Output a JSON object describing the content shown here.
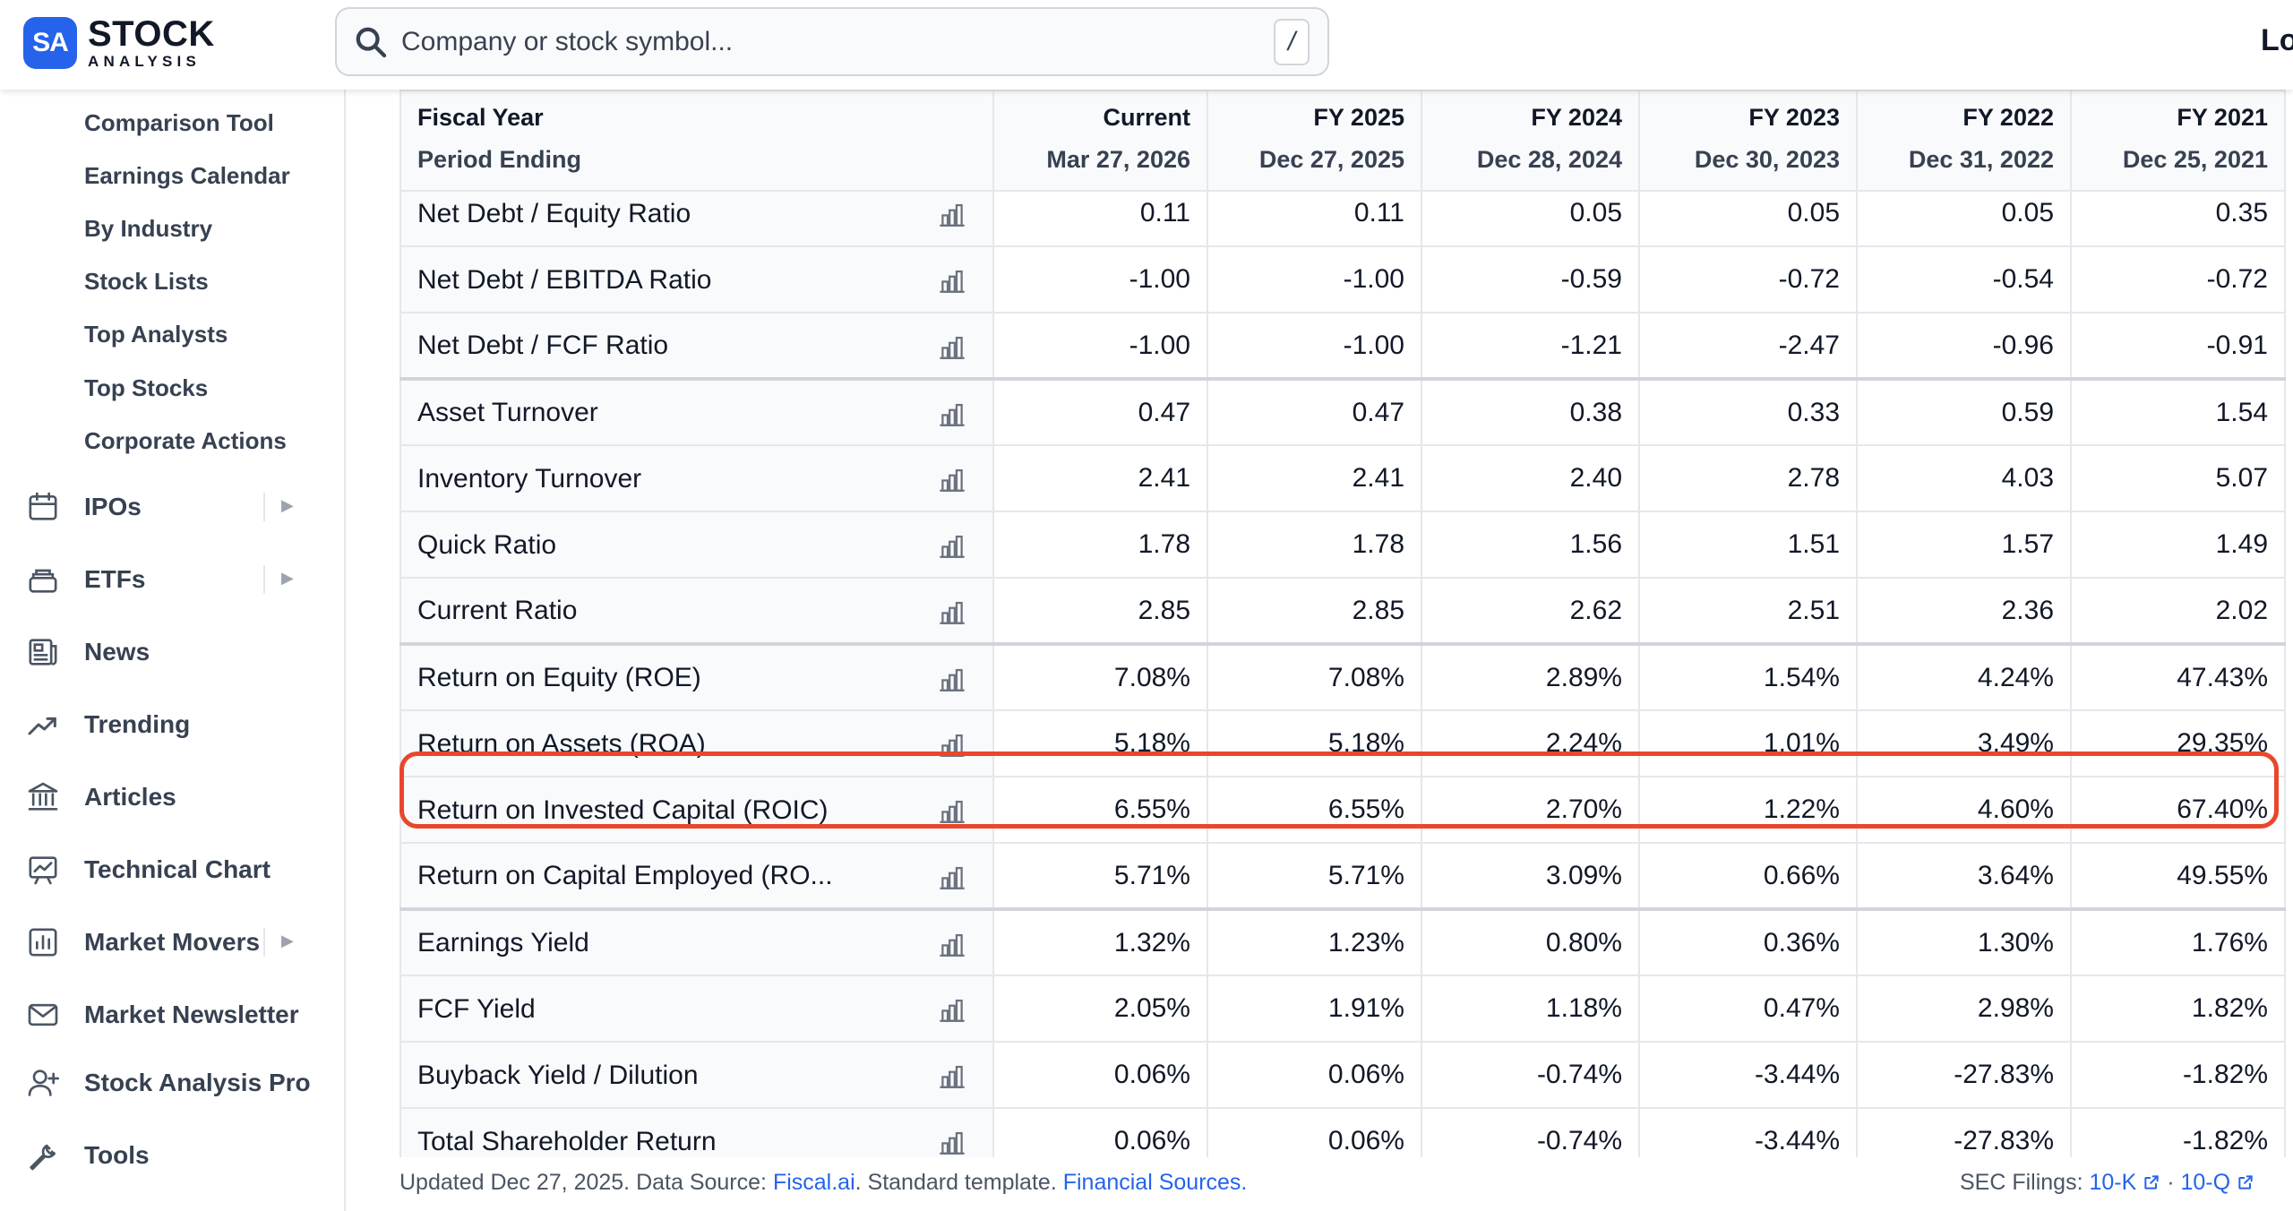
{
  "header": {
    "logo_badge": "SA",
    "logo_line1": "STOCK",
    "logo_line2": "ANALYSIS",
    "search_placeholder": "Company or stock symbol...",
    "search_shortcut": "/",
    "login_label": "Lo"
  },
  "sidebar": {
    "sub_items": [
      "Comparison Tool",
      "Earnings Calendar",
      "By Industry",
      "Stock Lists",
      "Top Analysts",
      "Top Stocks",
      "Corporate Actions"
    ],
    "items": [
      {
        "label": "IPOs",
        "icon": "calendar-icon",
        "expandable": true
      },
      {
        "label": "ETFs",
        "icon": "stack-icon",
        "expandable": true
      },
      {
        "label": "News",
        "icon": "newspaper-icon",
        "expandable": false
      },
      {
        "label": "Trending",
        "icon": "trending-up-icon",
        "expandable": false
      },
      {
        "label": "Articles",
        "icon": "bank-icon",
        "expandable": false
      },
      {
        "label": "Technical Chart",
        "icon": "chart-board-icon",
        "expandable": false
      },
      {
        "label": "Market Movers",
        "icon": "bar-chart-icon",
        "expandable": true
      },
      {
        "label": "Market Newsletter",
        "icon": "mail-icon",
        "expandable": false
      },
      {
        "label": "Stock Analysis Pro",
        "icon": "user-plus-icon",
        "expandable": false
      },
      {
        "label": "Tools",
        "icon": "wrench-icon",
        "expandable": false
      }
    ]
  },
  "table": {
    "header_label_1": "Fiscal Year",
    "header_label_2": "Period Ending",
    "columns": [
      {
        "year": "Current",
        "date": "Mar 27, 2026"
      },
      {
        "year": "FY 2025",
        "date": "Dec 27, 2025"
      },
      {
        "year": "FY 2024",
        "date": "Dec 28, 2024"
      },
      {
        "year": "FY 2023",
        "date": "Dec 30, 2023"
      },
      {
        "year": "FY 2022",
        "date": "Dec 31, 2022"
      },
      {
        "year": "FY 2021",
        "date": "Dec 25, 2021"
      }
    ],
    "partial_row": {
      "label": "Net Debt / Equity Ratio",
      "values": [
        "0.11",
        "0.11",
        "0.05",
        "0.05",
        "0.05",
        "0.35"
      ]
    },
    "rows": [
      {
        "label": "Net Debt / EBITDA Ratio",
        "values": [
          "-1.00",
          "-1.00",
          "-0.59",
          "-0.72",
          "-0.54",
          "-0.72"
        ],
        "group_start": false
      },
      {
        "label": "Net Debt / FCF Ratio",
        "values": [
          "-1.00",
          "-1.00",
          "-1.21",
          "-2.47",
          "-0.96",
          "-0.91"
        ],
        "group_start": false
      },
      {
        "label": "Asset Turnover",
        "values": [
          "0.47",
          "0.47",
          "0.38",
          "0.33",
          "0.59",
          "1.54"
        ],
        "group_start": true
      },
      {
        "label": "Inventory Turnover",
        "values": [
          "2.41",
          "2.41",
          "2.40",
          "2.78",
          "4.03",
          "5.07"
        ],
        "group_start": false
      },
      {
        "label": "Quick Ratio",
        "values": [
          "1.78",
          "1.78",
          "1.56",
          "1.51",
          "1.57",
          "1.49"
        ],
        "group_start": false
      },
      {
        "label": "Current Ratio",
        "values": [
          "2.85",
          "2.85",
          "2.62",
          "2.51",
          "2.36",
          "2.02"
        ],
        "group_start": false
      },
      {
        "label": "Return on Equity (ROE)",
        "values": [
          "7.08%",
          "7.08%",
          "2.89%",
          "1.54%",
          "4.24%",
          "47.43%"
        ],
        "group_start": true
      },
      {
        "label": "Return on Assets (ROA)",
        "values": [
          "5.18%",
          "5.18%",
          "2.24%",
          "1.01%",
          "3.49%",
          "29.35%"
        ],
        "group_start": false
      },
      {
        "label": "Return on Invested Capital (ROIC)",
        "values": [
          "6.55%",
          "6.55%",
          "2.70%",
          "1.22%",
          "4.60%",
          "67.40%"
        ],
        "group_start": false,
        "highlighted": true
      },
      {
        "label": "Return on Capital Employed (RO...",
        "values": [
          "5.71%",
          "5.71%",
          "3.09%",
          "0.66%",
          "3.64%",
          "49.55%"
        ],
        "group_start": false
      },
      {
        "label": "Earnings Yield",
        "values": [
          "1.32%",
          "1.23%",
          "0.80%",
          "0.36%",
          "1.30%",
          "1.76%"
        ],
        "group_start": true
      },
      {
        "label": "FCF Yield",
        "values": [
          "2.05%",
          "1.91%",
          "1.18%",
          "0.47%",
          "2.98%",
          "1.82%"
        ],
        "group_start": false
      },
      {
        "label": "Buyback Yield / Dilution",
        "values": [
          "0.06%",
          "0.06%",
          "-0.74%",
          "-3.44%",
          "-27.83%",
          "-1.82%"
        ],
        "group_start": false
      },
      {
        "label": "Total Shareholder Return",
        "values": [
          "0.06%",
          "0.06%",
          "-0.74%",
          "-3.44%",
          "-27.83%",
          "-1.82%"
        ],
        "group_start": false
      }
    ]
  },
  "footer": {
    "updated_text": "Updated Dec 27, 2025. Data Source: ",
    "source_link": "Fiscal.ai",
    "middle_text": ". Standard template. ",
    "sources_link": "Financial Sources.",
    "sec_label": "SEC Filings: ",
    "filing_1": "10-K",
    "separator": " · ",
    "filing_2": "10-Q"
  },
  "colors": {
    "accent": "#2563eb",
    "highlight": "#e8472c"
  }
}
